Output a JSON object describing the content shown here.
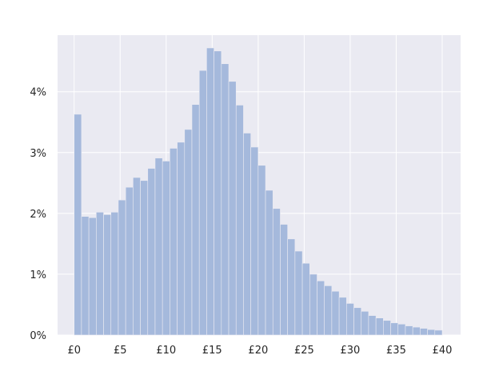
{
  "chart_data": {
    "type": "bar",
    "title": "",
    "xlabel": "",
    "ylabel": "",
    "xlim": [
      -1.8,
      42
    ],
    "ylim": [
      0,
      4.93
    ],
    "bin_width": 0.8,
    "bins_start": 0,
    "x_ticks": [
      {
        "value": 0,
        "label": "£0"
      },
      {
        "value": 5,
        "label": "£5"
      },
      {
        "value": 10,
        "label": "£10"
      },
      {
        "value": 15,
        "label": "£15"
      },
      {
        "value": 20,
        "label": "£20"
      },
      {
        "value": 25,
        "label": "£25"
      },
      {
        "value": 30,
        "label": "£30"
      },
      {
        "value": 35,
        "label": "£35"
      },
      {
        "value": 40,
        "label": "£40"
      }
    ],
    "y_ticks": [
      {
        "value": 0,
        "label": "0%"
      },
      {
        "value": 1,
        "label": "1%"
      },
      {
        "value": 2,
        "label": "2%"
      },
      {
        "value": 3,
        "label": "3%"
      },
      {
        "value": 4,
        "label": "4%"
      }
    ],
    "grid": true,
    "bar_color": "#a5b9dc",
    "background_color": "#eaeaf2",
    "grid_color": "#ffffff",
    "values": [
      3.63,
      1.95,
      1.93,
      2.02,
      1.98,
      2.02,
      2.22,
      2.43,
      2.59,
      2.54,
      2.74,
      2.91,
      2.86,
      3.07,
      3.17,
      3.38,
      3.79,
      4.35,
      4.72,
      4.67,
      4.46,
      4.17,
      3.78,
      3.32,
      3.09,
      2.79,
      2.38,
      2.08,
      1.82,
      1.58,
      1.38,
      1.18,
      1.0,
      0.89,
      0.81,
      0.72,
      0.62,
      0.52,
      0.45,
      0.39,
      0.32,
      0.28,
      0.24,
      0.2,
      0.18,
      0.15,
      0.13,
      0.11,
      0.09,
      0.08
    ]
  }
}
